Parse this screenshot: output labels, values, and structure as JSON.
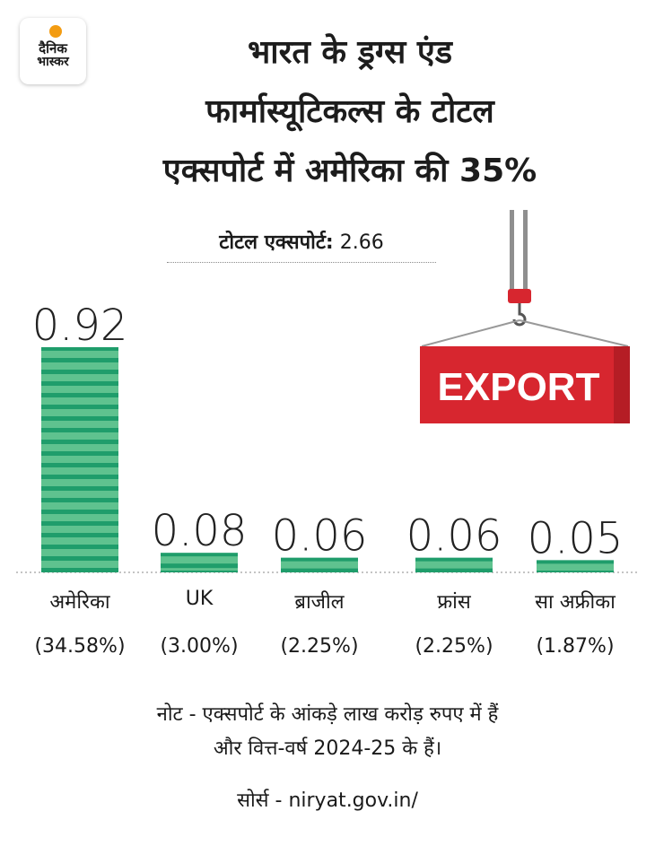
{
  "brand": {
    "line1": "दैनिक",
    "line2": "भास्कर"
  },
  "title_lines": [
    "भारत के ड्रग्स एंड",
    "फार्मास्यूटिकल्स के टोटल",
    "एक्सपोर्ट में अमेरिका की 35%"
  ],
  "total": {
    "label": "टोटल एक्सपोर्ट:",
    "value": "2.66"
  },
  "illustration": {
    "sign_text": "EXPORT",
    "sign_color": "#d7262f",
    "hook_color": "#d7262f"
  },
  "colors": {
    "bar": "#1f9d6b",
    "bar_stripe": "#5fc28f"
  },
  "chart_data": {
    "type": "bar",
    "categories": [
      "अमेरिका",
      "UK",
      "ब्राजील",
      "फ्रांस",
      "सा अफ्रीका"
    ],
    "values": [
      0.92,
      0.08,
      0.06,
      0.06,
      0.05
    ],
    "value_labels": [
      "0.92",
      "0.08",
      "0.06",
      "0.06",
      "0.05"
    ],
    "percent_labels": [
      "(34.58%)",
      "(3.00%)",
      "(2.25%)",
      "(2.25%)",
      "(1.87%)"
    ],
    "ylim": [
      0,
      0.92
    ]
  },
  "note_lines": [
    "नोट - एक्सपोर्ट के आंकड़े लाख करोड़ रुपए में हैं",
    "और वित्त-वर्ष 2024-25 के हैं।"
  ],
  "source": "सोर्स - niryat.gov.in/"
}
